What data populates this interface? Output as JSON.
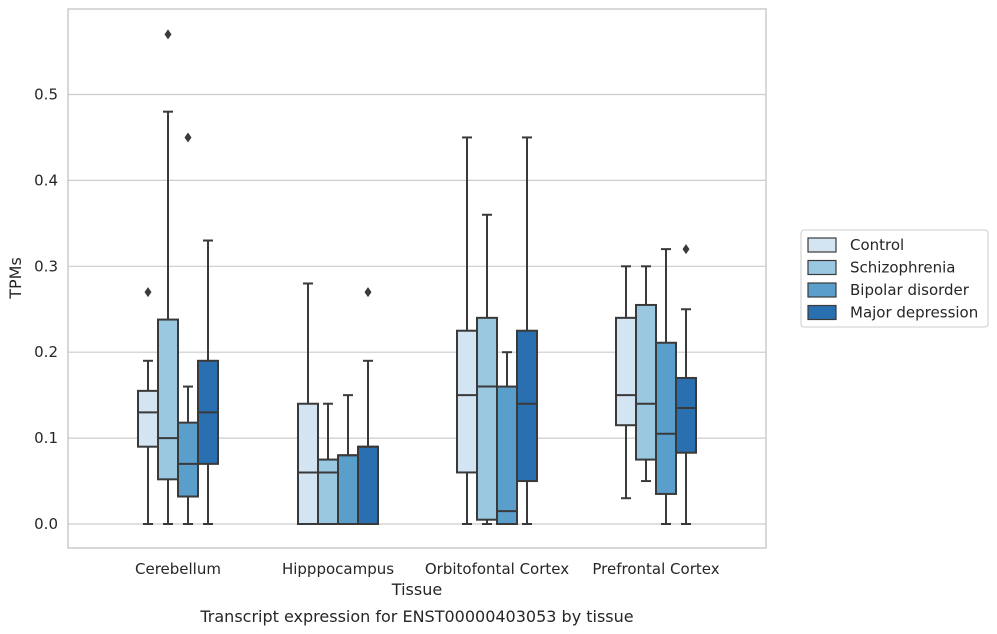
{
  "chart_data": {
    "type": "box",
    "xlabel": "Tissue",
    "ylabel": "TPMs",
    "caption": "Transcript expression for ENST00000403053 by tissue",
    "ylim": [
      -0.028,
      0.59
    ],
    "yticks": [
      0.0,
      0.1,
      0.2,
      0.3,
      0.4,
      0.5
    ],
    "ytick_labels": [
      "0.0",
      "0.1",
      "0.2",
      "0.3",
      "0.4",
      "0.5"
    ],
    "grid": "horizontal",
    "legend_position": "right",
    "categories": [
      "Cerebellum",
      "Hipppocampus",
      "Orbitofontal Cortex",
      "Prefrontal Cortex"
    ],
    "series": [
      {
        "name": "Control",
        "color": "#d3e4f3",
        "boxes": [
          {
            "whislo": 0.0,
            "q1": 0.09,
            "med": 0.13,
            "q3": 0.155,
            "whishi": 0.19,
            "fliers": [
              0.27
            ]
          },
          {
            "whislo": 0.0,
            "q1": 0.0,
            "med": 0.06,
            "q3": 0.14,
            "whishi": 0.28,
            "fliers": []
          },
          {
            "whislo": 0.0,
            "q1": 0.06,
            "med": 0.15,
            "q3": 0.225,
            "whishi": 0.45,
            "fliers": []
          },
          {
            "whislo": 0.03,
            "q1": 0.115,
            "med": 0.15,
            "q3": 0.24,
            "whishi": 0.3,
            "fliers": []
          }
        ]
      },
      {
        "name": "Schizophrenia",
        "color": "#9ac8e0",
        "boxes": [
          {
            "whislo": 0.0,
            "q1": 0.052,
            "med": 0.1,
            "q3": 0.238,
            "whishi": 0.48,
            "fliers": [
              0.57
            ]
          },
          {
            "whislo": 0.0,
            "q1": 0.0,
            "med": 0.06,
            "q3": 0.075,
            "whishi": 0.14,
            "fliers": []
          },
          {
            "whislo": 0.0,
            "q1": 0.005,
            "med": 0.16,
            "q3": 0.24,
            "whishi": 0.36,
            "fliers": []
          },
          {
            "whislo": 0.05,
            "q1": 0.075,
            "med": 0.14,
            "q3": 0.255,
            "whishi": 0.3,
            "fliers": []
          }
        ]
      },
      {
        "name": "Bipolar disorder",
        "color": "#5a9ecc",
        "boxes": [
          {
            "whislo": 0.0,
            "q1": 0.032,
            "med": 0.07,
            "q3": 0.118,
            "whishi": 0.16,
            "fliers": [
              0.45
            ]
          },
          {
            "whislo": 0.0,
            "q1": 0.0,
            "med": 0.08,
            "q3": 0.08,
            "whishi": 0.15,
            "fliers": []
          },
          {
            "whislo": 0.0,
            "q1": 0.0,
            "med": 0.015,
            "q3": 0.16,
            "whishi": 0.2,
            "fliers": []
          },
          {
            "whislo": 0.0,
            "q1": 0.035,
            "med": 0.105,
            "q3": 0.211,
            "whishi": 0.32,
            "fliers": []
          }
        ]
      },
      {
        "name": "Major depression",
        "color": "#2a6fb0",
        "boxes": [
          {
            "whislo": 0.0,
            "q1": 0.07,
            "med": 0.13,
            "q3": 0.19,
            "whishi": 0.33,
            "fliers": []
          },
          {
            "whislo": 0.0,
            "q1": 0.0,
            "med": 0.09,
            "q3": 0.09,
            "whishi": 0.19,
            "fliers": [
              0.27
            ]
          },
          {
            "whislo": 0.0,
            "q1": 0.05,
            "med": 0.14,
            "q3": 0.225,
            "whishi": 0.45,
            "fliers": []
          },
          {
            "whislo": 0.0,
            "q1": 0.083,
            "med": 0.135,
            "q3": 0.17,
            "whishi": 0.25,
            "fliers": [
              0.32
            ]
          }
        ]
      }
    ]
  }
}
